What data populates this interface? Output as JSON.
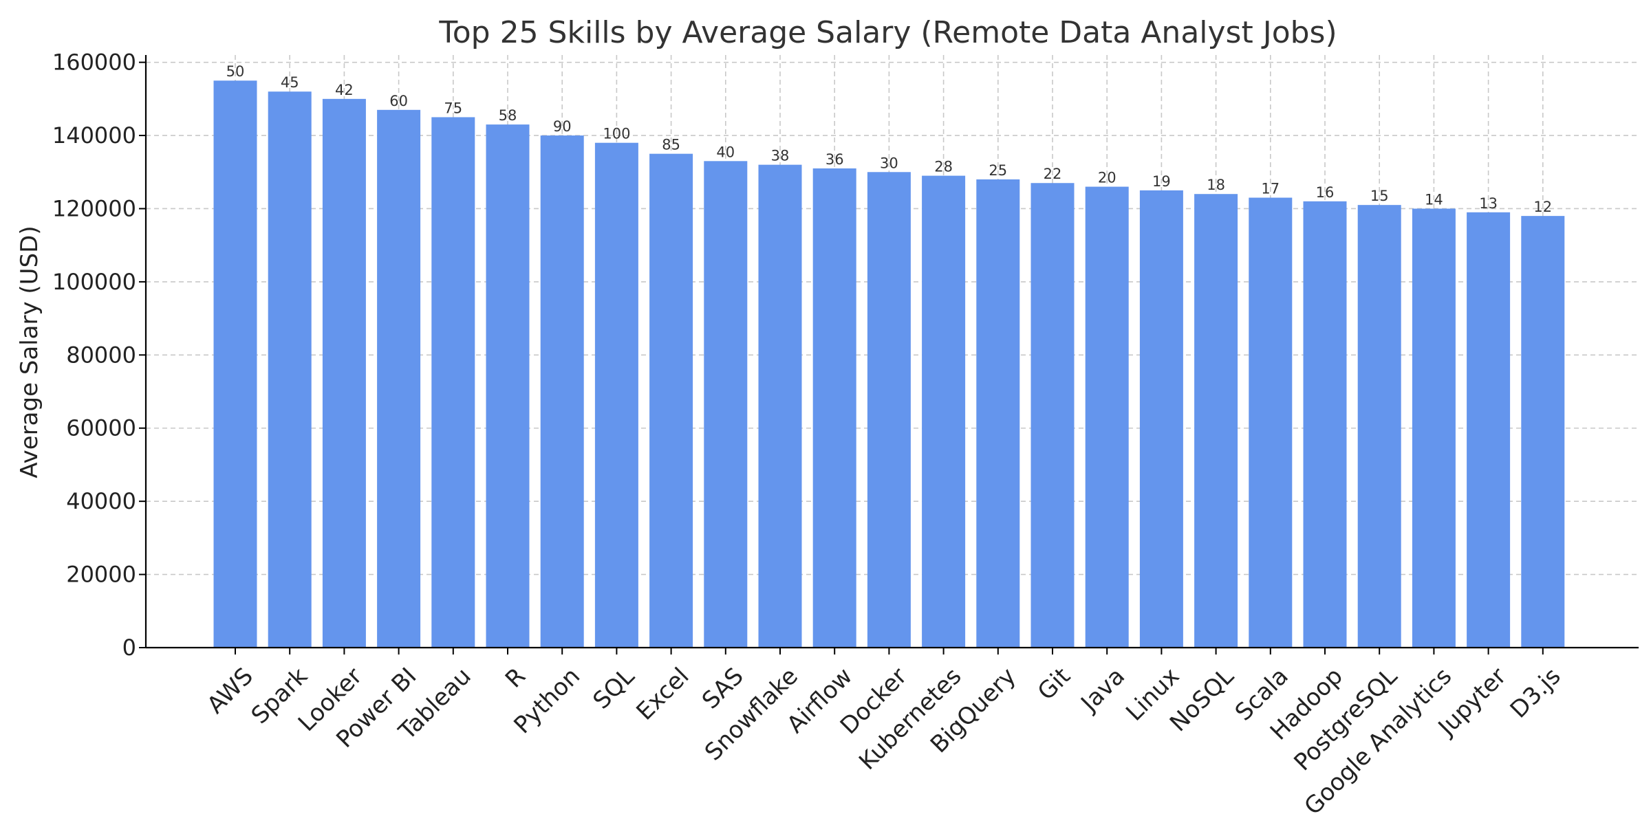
{
  "chart_data": {
    "type": "bar",
    "title": "Top 25 Skills by Average Salary (Remote Data Analyst Jobs)",
    "xlabel": "",
    "ylabel": "Average Salary (USD)",
    "ylim": [
      0,
      162000
    ],
    "yticks": [
      0,
      20000,
      40000,
      60000,
      80000,
      100000,
      120000,
      140000,
      160000
    ],
    "grid": true,
    "bar_color": "#6495ED",
    "categories": [
      "AWS",
      "Spark",
      "Looker",
      "Power BI",
      "Tableau",
      "R",
      "Python",
      "SQL",
      "Excel",
      "SAS",
      "Snowflake",
      "Airflow",
      "Docker",
      "Kubernetes",
      "BigQuery",
      "Git",
      "Java",
      "Linux",
      "NoSQL",
      "Scala",
      "Hadoop",
      "PostgreSQL",
      "Google Analytics",
      "Jupyter",
      "D3.js"
    ],
    "values": [
      155000,
      152000,
      150000,
      147000,
      145000,
      143000,
      140000,
      138000,
      135000,
      133000,
      132000,
      131000,
      130000,
      129000,
      128000,
      127000,
      126000,
      125000,
      124000,
      123000,
      122000,
      121000,
      120000,
      119000,
      118000
    ],
    "data_labels": [
      "50",
      "45",
      "42",
      "60",
      "75",
      "58",
      "90",
      "100",
      "85",
      "40",
      "38",
      "36",
      "30",
      "28",
      "25",
      "22",
      "20",
      "19",
      "18",
      "17",
      "16",
      "15",
      "14",
      "13",
      "12"
    ]
  }
}
